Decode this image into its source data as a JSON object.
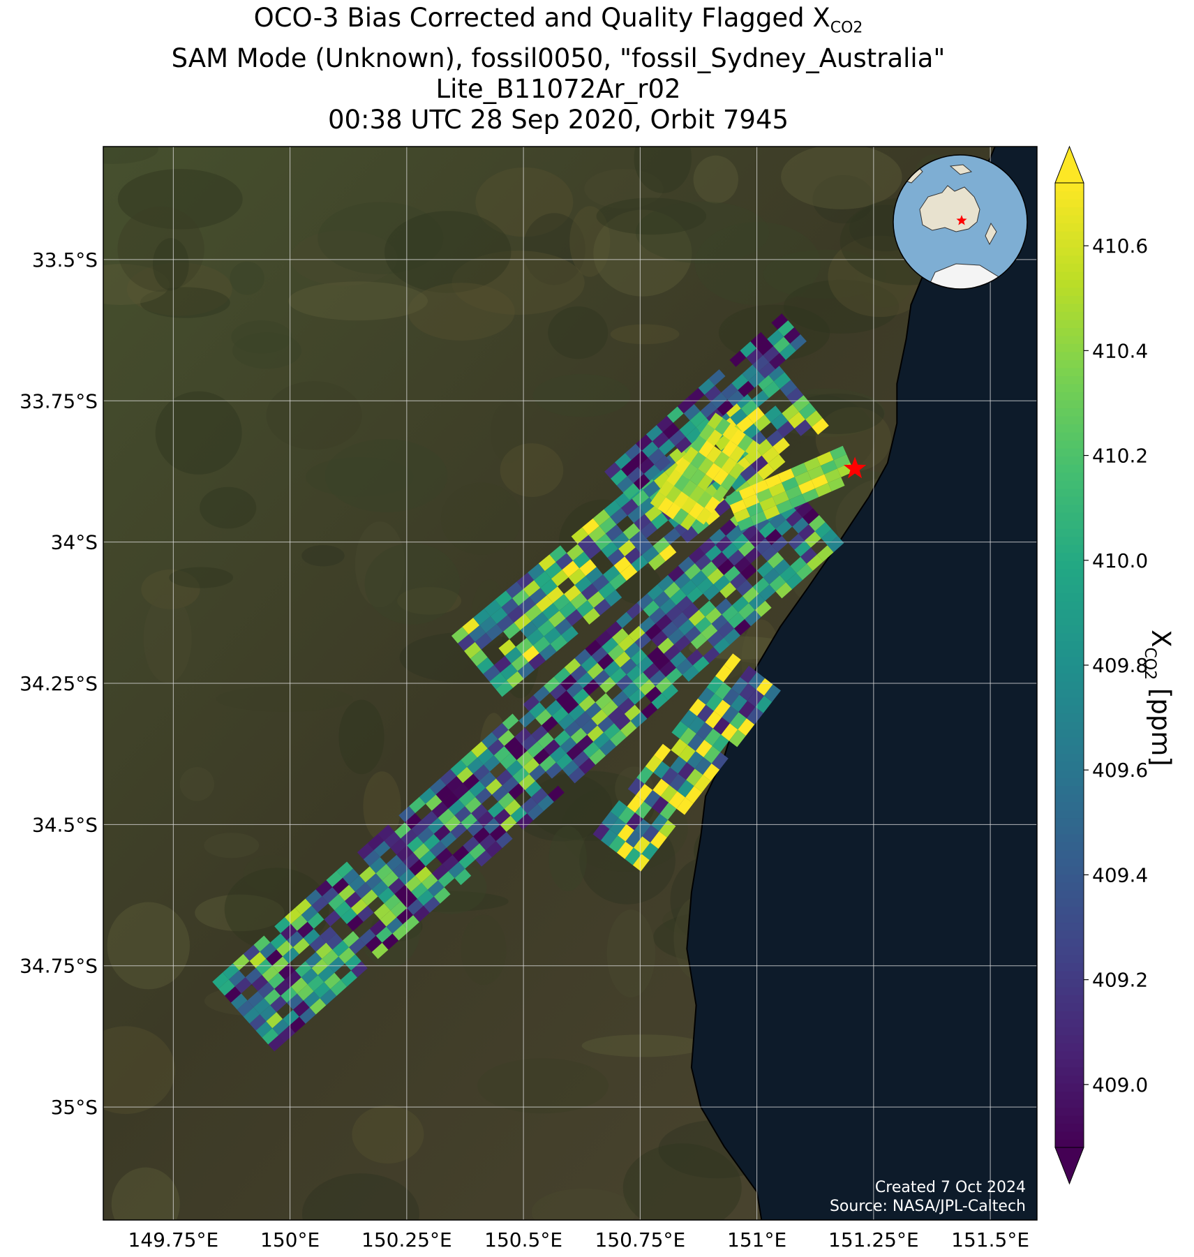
{
  "title": {
    "line1_prefix": "OCO-3 Bias Corrected and Quality Flagged X",
    "line1_sub": "CO2",
    "line2": "SAM Mode (Unknown), fossil0050, \"fossil_Sydney_Australia\"",
    "line3": "Lite_B11072Ar_r02",
    "line4": "00:38 UTC 28 Sep 2020, Orbit 7945"
  },
  "map": {
    "extent": {
      "lon": [
        149.6,
        151.6
      ],
      "lat": [
        -35.2,
        -33.3
      ]
    },
    "lon_ticks": [
      {
        "value": 149.75,
        "label": "149.75°E"
      },
      {
        "value": 150.0,
        "label": "150°E"
      },
      {
        "value": 150.25,
        "label": "150.25°E"
      },
      {
        "value": 150.5,
        "label": "150.5°E"
      },
      {
        "value": 150.75,
        "label": "150.75°E"
      },
      {
        "value": 151.0,
        "label": "151°E"
      },
      {
        "value": 151.25,
        "label": "151.25°E"
      },
      {
        "value": 151.5,
        "label": "151.5°E"
      }
    ],
    "lat_ticks": [
      {
        "value": -33.5,
        "label": "33.5°S"
      },
      {
        "value": -33.75,
        "label": "33.75°S"
      },
      {
        "value": -34.0,
        "label": "34°S"
      },
      {
        "value": -34.25,
        "label": "34.25°S"
      },
      {
        "value": -34.5,
        "label": "34.5°S"
      },
      {
        "value": -34.75,
        "label": "34.75°S"
      },
      {
        "value": -35.0,
        "label": "35°S"
      }
    ],
    "target": {
      "lon": 151.21,
      "lat": -33.87,
      "color": "#ff0000"
    },
    "land_color": "#4a4a2e",
    "ocean_color": "#0d1b2a",
    "gridlines": true,
    "credit_line1": "Created 7 Oct 2024",
    "credit_line2": "Source: NASA/JPL-Caltech"
  },
  "colorbar": {
    "label": "X_CO2 [ppm]",
    "label_prefix": "X",
    "label_sub": "CO2",
    "label_suffix": " [ppm]",
    "vmin": 408.88,
    "vmax": 410.72,
    "extend": "both",
    "colormap": "viridis",
    "ticks": [
      {
        "value": 409.0,
        "label": "409.0"
      },
      {
        "value": 409.2,
        "label": "409.2"
      },
      {
        "value": 409.4,
        "label": "409.4"
      },
      {
        "value": 409.6,
        "label": "409.6"
      },
      {
        "value": 409.8,
        "label": "409.8"
      },
      {
        "value": 410.0,
        "label": "410.0"
      },
      {
        "value": 410.2,
        "label": "410.2"
      },
      {
        "value": 410.4,
        "label": "410.4"
      },
      {
        "value": 410.6,
        "label": "410.6"
      }
    ]
  },
  "inset_globe": {
    "ocean_color": "#7eaed3",
    "land_color": "#e8e2cf",
    "marker_color": "#ff0000"
  },
  "chart_data": {
    "type": "scatter",
    "title": "OCO-3 Bias Corrected and Quality Flagged X_CO2",
    "xlabel": "",
    "ylabel": "",
    "xlim": [
      149.6,
      151.6
    ],
    "ylim": [
      -35.2,
      -33.3
    ],
    "value_label": "X_CO2 [ppm]",
    "value_range": [
      408.88,
      410.72
    ],
    "swaths": [
      {
        "name": "",
        "start": [
          150.4,
          -34.22
        ],
        "end": [
          151.1,
          -33.74
        ],
        "width_deg": 0.17,
        "mean": 409.95,
        "spread": 0.55
      },
      {
        "name": "",
        "start": [
          149.9,
          -34.84
        ],
        "end": [
          151.12,
          -33.94
        ],
        "width_deg": 0.2,
        "mean": 409.65,
        "spread": 0.55
      },
      {
        "name": "",
        "start": [
          150.7,
          -34.55
        ],
        "end": [
          151.0,
          -34.23
        ],
        "width_deg": 0.13,
        "mean": 410.05,
        "spread": 0.65
      },
      {
        "name": "",
        "start": [
          150.7,
          -33.9
        ],
        "end": [
          151.08,
          -33.62
        ],
        "width_deg": 0.08,
        "mean": 409.4,
        "spread": 0.5
      },
      {
        "name": "",
        "start": [
          150.95,
          -33.95
        ],
        "end": [
          151.2,
          -33.86
        ],
        "width_deg": 0.08,
        "mean": 410.5,
        "spread": 0.25
      },
      {
        "name": "",
        "start": [
          150.82,
          -33.96
        ],
        "end": [
          150.96,
          -33.8
        ],
        "width_deg": 0.12,
        "mean": 410.55,
        "spread": 0.2
      }
    ]
  }
}
